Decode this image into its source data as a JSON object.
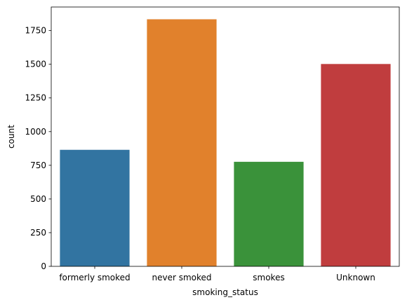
{
  "chart_data": {
    "type": "bar",
    "title": "",
    "xlabel": "smoking_status",
    "ylabel": "count",
    "categories": [
      "formerly smoked",
      "never smoked",
      "smokes",
      "Unknown"
    ],
    "values": [
      865,
      1834,
      776,
      1502
    ],
    "colors": [
      "#3274a1",
      "#e1812c",
      "#3a923a",
      "#c03d3e"
    ],
    "ylim": [
      0,
      1925
    ],
    "yticks": [
      0,
      250,
      500,
      750,
      1000,
      1250,
      1500,
      1750
    ],
    "grid": false,
    "legend": "none"
  }
}
